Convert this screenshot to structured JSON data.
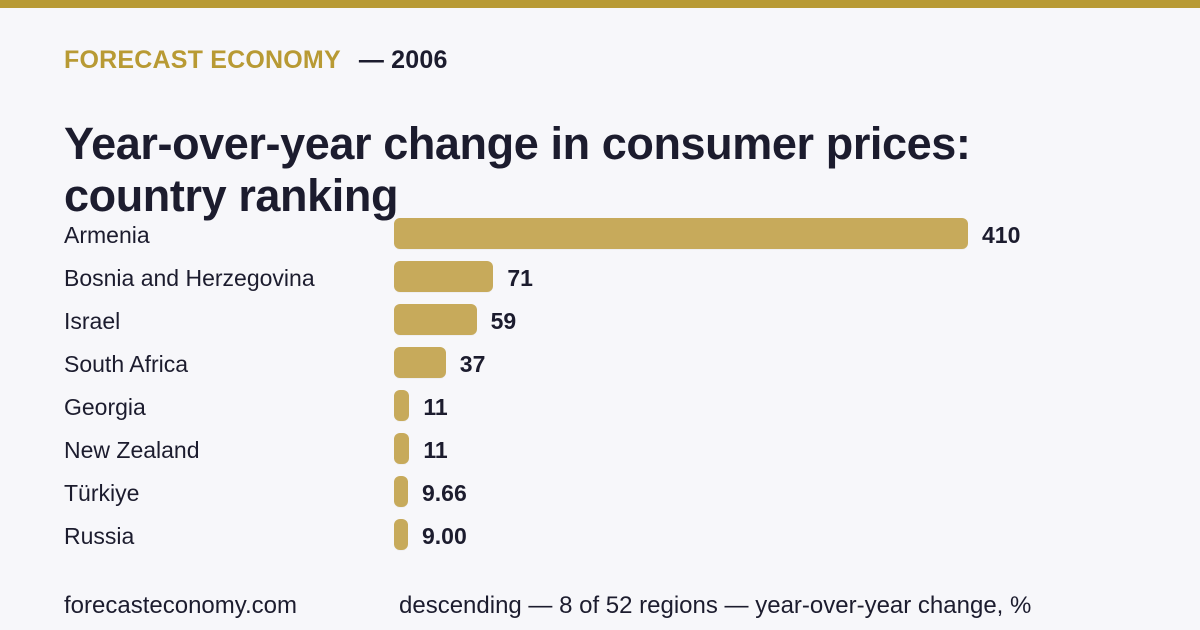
{
  "header": {
    "brand": "FORECAST ECONOMY",
    "year_label": "— 2006",
    "title": "Year-over-year change in consumer prices: country ranking"
  },
  "footer": {
    "site": "forecasteconomy.com",
    "note": "descending — 8 of 52 regions — year-over-year change, %"
  },
  "colors": {
    "accent": "#b89a34",
    "bar": "#c7aa5b",
    "text": "#1c1c2e",
    "background": "#f7f7fa"
  },
  "chart_data": {
    "type": "bar",
    "orientation": "horizontal",
    "categories": [
      "Armenia",
      "Bosnia and Herzegovina",
      "Israel",
      "South Africa",
      "Georgia",
      "New Zealand",
      "Türkiye",
      "Russia"
    ],
    "values": [
      410,
      71,
      59,
      37,
      11,
      11,
      9.66,
      9.0
    ],
    "value_labels": [
      "410",
      "71",
      "59",
      "37",
      "11",
      "11",
      "9.66",
      "9.00"
    ],
    "title": "Year-over-year change in consumer prices: country ranking",
    "xlabel": "",
    "ylabel": "",
    "xlim": [
      0,
      410
    ],
    "grid": false,
    "legend": "none"
  }
}
